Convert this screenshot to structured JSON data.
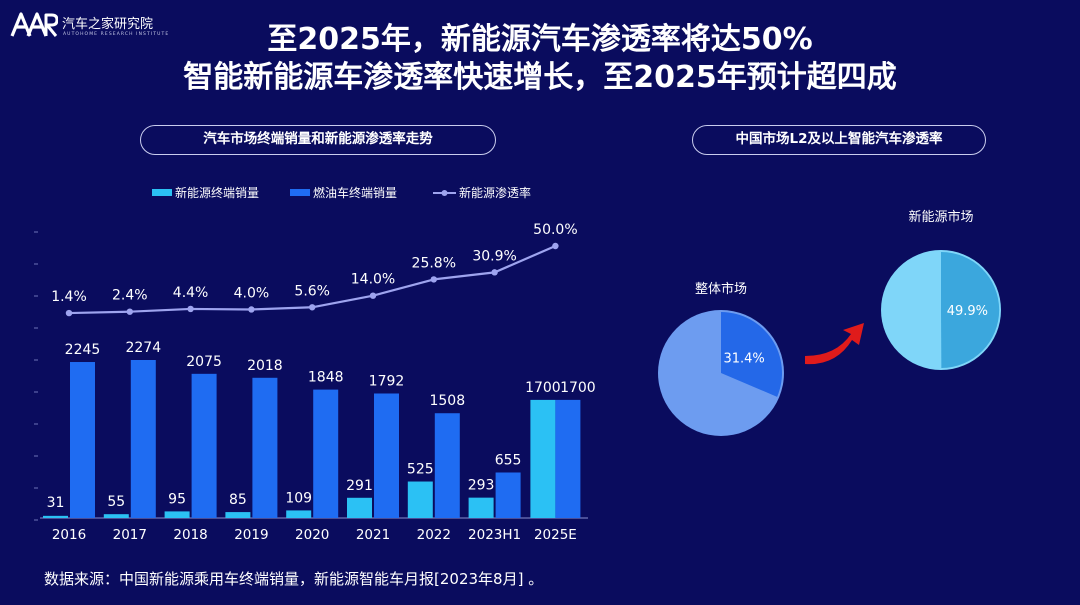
{
  "header": {
    "logo_text": "汽车之家研究院",
    "logo_subtext": "AUTOHOME RESEARCH INSTITUTE",
    "title_line_1": "至2025年，新能源汽车渗透率将达50%",
    "title_line_2": "智能新能源车渗透率快速增长，至2025年预计超四成"
  },
  "left_panel": {
    "title": "汽车市场终端销量和新能源渗透率走势"
  },
  "right_panel": {
    "title": "中国市场L2及以上智能汽车渗透率"
  },
  "source": "数据来源：中国新能源乘用车终端销量，新能源智能车月报[2023年8月] 。",
  "colors": {
    "background": "#0a0c5e",
    "nev_bar": "#2bc1f4",
    "ice_bar": "#1f6cf2",
    "penetration_line": "#9ea4ef",
    "pie_overall_bg": "#6d9cf0",
    "pie_overall_slice": "#2468e8",
    "pie_nev_bg": "#7fd6f9",
    "pie_nev_slice": "#3ba7dd",
    "arrow": "#e01b1b"
  },
  "chart_data": [
    {
      "type": "bar",
      "title": "汽车市场终端销量和新能源渗透率走势",
      "categories": [
        "2016",
        "2017",
        "2018",
        "2019",
        "2020",
        "2021",
        "2022",
        "2023H1",
        "2025E"
      ],
      "series": [
        {
          "name": "新能源终端销量",
          "type": "bar",
          "values": [
            31,
            55,
            95,
            85,
            109,
            291,
            525,
            293,
            1700
          ]
        },
        {
          "name": "燃油车终端销量",
          "type": "bar",
          "values": [
            2245,
            2274,
            2075,
            2018,
            1848,
            1792,
            1508,
            655,
            1700
          ]
        },
        {
          "name": "新能源渗透率",
          "type": "line",
          "values": [
            1.4,
            2.4,
            4.4,
            4.0,
            5.6,
            14.0,
            25.8,
            30.9,
            50.0
          ],
          "labels": [
            "1.4%",
            "2.4%",
            "4.4%",
            "4.0%",
            "5.6%",
            "14.0%",
            "25.8%",
            "30.9%",
            "50.0%"
          ]
        }
      ],
      "bar_ylim": [
        0,
        2500
      ],
      "legend": "top"
    },
    {
      "type": "pie",
      "title": "整体市场",
      "values": [
        31.4,
        68.6
      ],
      "slice_label": "31.4%"
    },
    {
      "type": "pie",
      "title": "新能源市场",
      "values": [
        49.9,
        50.1
      ],
      "slice_label": "49.9%"
    }
  ]
}
